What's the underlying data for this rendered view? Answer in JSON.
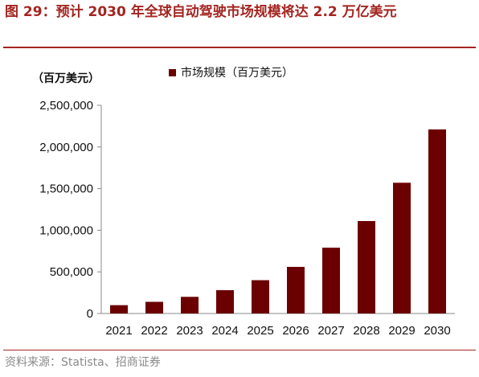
{
  "figure": {
    "title": "图 29：预计 2030 年全球自动驾驶市场规模将达 2.2 万亿美元",
    "unit": "（百万美元）",
    "source": "资料来源：Statista、招商证券"
  },
  "colors": {
    "accent": "#a32521",
    "bar": "#6b0000"
  },
  "chart_data": {
    "type": "bar",
    "categories": [
      "2021",
      "2022",
      "2023",
      "2024",
      "2025",
      "2026",
      "2027",
      "2028",
      "2029",
      "2030"
    ],
    "series": [
      {
        "name": "市场规模（百万美元）",
        "values": [
          100000,
          140000,
          200000,
          280000,
          400000,
          560000,
          790000,
          1110000,
          1570000,
          2210000
        ]
      }
    ],
    "y_ticks": [
      "0",
      "500,000",
      "1,000,000",
      "1,500,000",
      "2,000,000",
      "2,500,000"
    ],
    "ylim": [
      0,
      2500000
    ],
    "legend": "top-center",
    "grid": false
  }
}
